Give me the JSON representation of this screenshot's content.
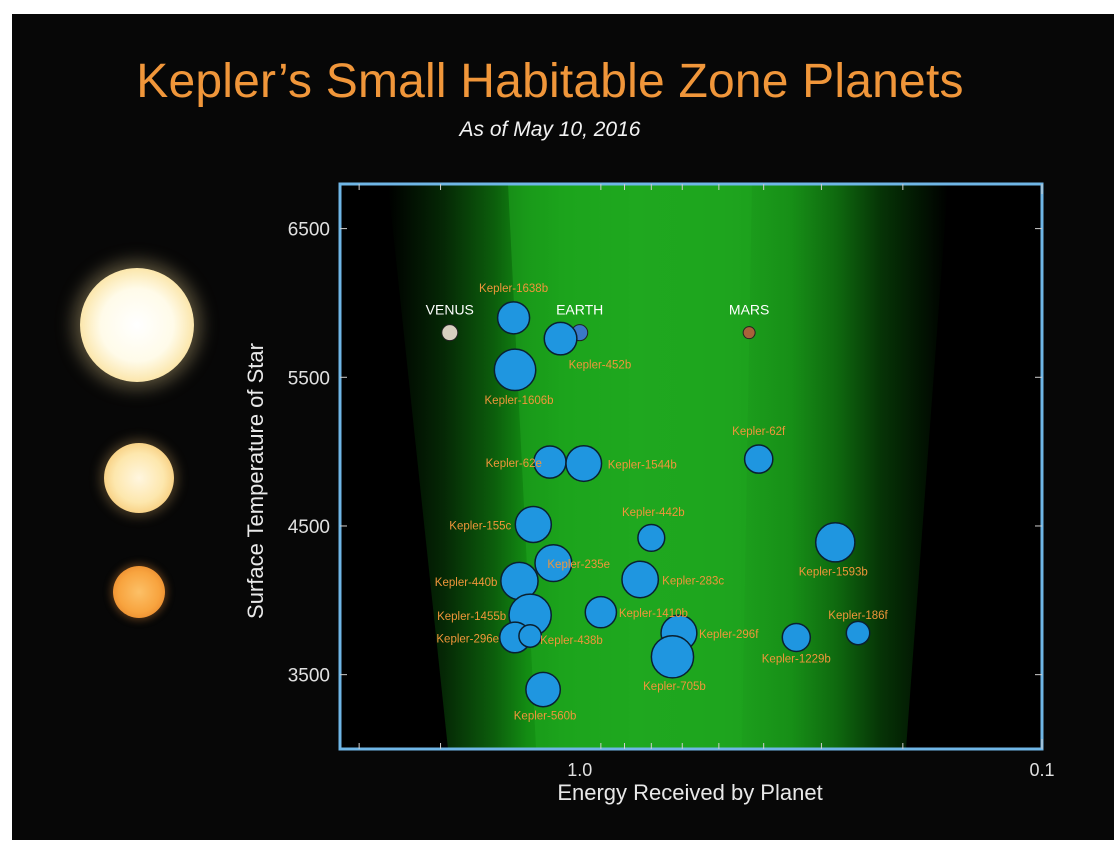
{
  "title": "Kepler’s Small Habitable Zone Planets",
  "subtitle": "As of May 10, 2016",
  "chart_data": {
    "type": "scatter",
    "title": "Kepler’s Small Habitable Zone Planets",
    "subtitle": "As of May 10, 2016",
    "xlabel": "Energy Received by Planet",
    "ylabel": "Surface Temperature of Star",
    "x_scale": "log",
    "x_reversed": true,
    "xlim": [
      3.3,
      0.1
    ],
    "ylim": [
      3000,
      6800
    ],
    "x_ticks": [
      1.0,
      0.1
    ],
    "x_tick_labels": [
      "1.0",
      "0.1"
    ],
    "y_ticks": [
      6500,
      5500,
      4500,
      3500
    ],
    "y_tick_labels": [
      "6500",
      "5500",
      "4500",
      "3500"
    ],
    "grid": false,
    "legend": "none",
    "habitable_zone_color": "#1fa51f",
    "planet_color": "#1f96e0",
    "star_colors": [
      "#fffbe9",
      "#fde7ad",
      "#f8a43f"
    ],
    "solar_planets": [
      {
        "name": "VENUS",
        "x": 1.91,
        "y": 5800,
        "color": "#d8d0c0"
      },
      {
        "name": "EARTH",
        "x": 1.0,
        "y": 5800,
        "color": "#3a78c8"
      },
      {
        "name": "MARS",
        "x": 0.43,
        "y": 5800,
        "color": "#a8623a"
      }
    ],
    "planets": [
      {
        "name": "Kepler-1638b",
        "x": 1.39,
        "y": 5900,
        "size": 1.6
      },
      {
        "name": "Kepler-452b",
        "x": 1.1,
        "y": 5760,
        "size": 1.63
      },
      {
        "name": "Kepler-1606b",
        "x": 1.38,
        "y": 5550,
        "size": 2.07
      },
      {
        "name": "Kepler-62e",
        "x": 1.16,
        "y": 4930,
        "size": 1.61
      },
      {
        "name": "Kepler-1544b",
        "x": 0.98,
        "y": 4920,
        "size": 1.78
      },
      {
        "name": "Kepler-62f",
        "x": 0.41,
        "y": 4950,
        "size": 1.41
      },
      {
        "name": "Kepler-155c",
        "x": 1.26,
        "y": 4510,
        "size": 1.8
      },
      {
        "name": "Kepler-442b",
        "x": 0.7,
        "y": 4420,
        "size": 1.34
      },
      {
        "name": "Kepler-235e",
        "x": 1.14,
        "y": 4250,
        "size": 1.84
      },
      {
        "name": "Kepler-1593b",
        "x": 0.28,
        "y": 4390,
        "size": 1.96
      },
      {
        "name": "Kepler-440b",
        "x": 1.35,
        "y": 4130,
        "size": 1.86
      },
      {
        "name": "Kepler-283c",
        "x": 0.74,
        "y": 4140,
        "size": 1.82
      },
      {
        "name": "Kepler-1455b",
        "x": 1.28,
        "y": 3900,
        "size": 2.11
      },
      {
        "name": "Kepler-1410b",
        "x": 0.9,
        "y": 3920,
        "size": 1.56
      },
      {
        "name": "Kepler-296e",
        "x": 1.38,
        "y": 3750,
        "size": 1.53
      },
      {
        "name": "Kepler-438b",
        "x": 1.28,
        "y": 3760,
        "size": 1.12
      },
      {
        "name": "Kepler-296f",
        "x": 0.61,
        "y": 3780,
        "size": 1.79
      },
      {
        "name": "Kepler-1229b",
        "x": 0.34,
        "y": 3750,
        "size": 1.4
      },
      {
        "name": "Kepler-186f",
        "x": 0.25,
        "y": 3780,
        "size": 1.17
      },
      {
        "name": "Kepler-705b",
        "x": 0.63,
        "y": 3620,
        "size": 2.11
      },
      {
        "name": "Kepler-560b",
        "x": 1.2,
        "y": 3400,
        "size": 1.72
      }
    ]
  }
}
